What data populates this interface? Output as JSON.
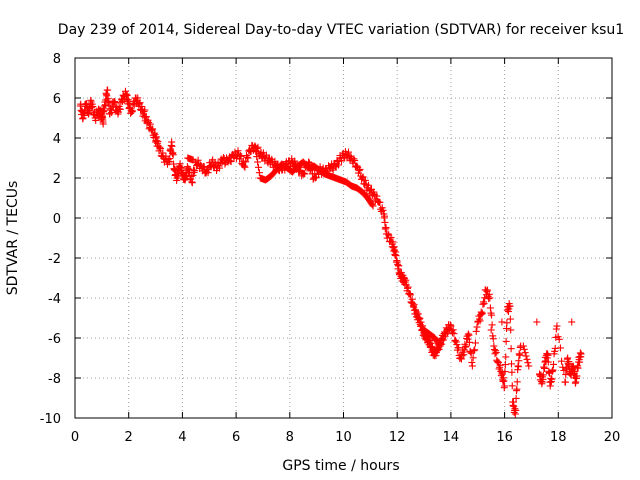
{
  "chart_data": {
    "type": "scatter",
    "title": "Day 239 of 2014, Sidereal Day-to-day VTEC variation (SDTVAR) for receiver ksu1",
    "xlabel": "GPS time / hours",
    "ylabel": "SDTVAR / TECUs",
    "xlim": [
      0,
      20
    ],
    "ylim": [
      -10,
      8
    ],
    "xticks": [
      0,
      2,
      4,
      6,
      8,
      10,
      12,
      14,
      16,
      18,
      20
    ],
    "yticks": [
      -10,
      -8,
      -6,
      -4,
      -2,
      0,
      2,
      4,
      6,
      8
    ],
    "grid": true,
    "marker": "+",
    "color": "#ff0000",
    "series": [
      {
        "name": "ksu1",
        "x": [
          0.2,
          0.3,
          0.4,
          0.5,
          0.6,
          0.75,
          0.9,
          1.0,
          1.1,
          1.2,
          1.3,
          1.45,
          1.6,
          1.75,
          1.9,
          2.0,
          2.1,
          2.25,
          2.4,
          2.55,
          2.7,
          2.85,
          3.0,
          3.1,
          3.3,
          3.5,
          3.6,
          3.7,
          3.8,
          3.9,
          4.0,
          4.1,
          4.2,
          4.35,
          4.5,
          4.7,
          4.9,
          5.1,
          5.3,
          5.5,
          5.7,
          5.9,
          6.1,
          6.3,
          6.5,
          6.7,
          6.9,
          7.1,
          7.3,
          7.5,
          7.7,
          7.9,
          8.1,
          8.3,
          8.5,
          8.7,
          8.9,
          9.1,
          9.3,
          9.5,
          9.7,
          9.9,
          10.1,
          10.3,
          10.5,
          10.7,
          10.9,
          11.1,
          11.3,
          11.5,
          11.6,
          11.8,
          11.9,
          12.0,
          12.1,
          12.2,
          12.3,
          12.45,
          12.6,
          12.7,
          12.8,
          12.9,
          13.0,
          13.1,
          13.2,
          13.3,
          13.4,
          13.5,
          13.6,
          13.7,
          13.85,
          14.0,
          14.2,
          14.35,
          14.5,
          14.65,
          14.8,
          15.0,
          15.15,
          15.3,
          15.45,
          15.6,
          15.75,
          15.9,
          16.0,
          16.1,
          16.2,
          16.3,
          16.4,
          16.5,
          16.6,
          17.3,
          17.4,
          17.5,
          17.6,
          17.7,
          17.8,
          17.95,
          18.25,
          18.35,
          18.45,
          18.55,
          18.65,
          18.75,
          18.85
        ],
        "y": [
          5.6,
          5.0,
          5.7,
          5.2,
          5.8,
          5.0,
          5.4,
          5.0,
          5.6,
          6.4,
          5.2,
          5.8,
          5.2,
          5.9,
          6.2,
          5.7,
          5.3,
          6.0,
          5.7,
          5.2,
          4.8,
          4.4,
          4.0,
          3.6,
          3.0,
          2.8,
          3.8,
          2.4,
          2.0,
          2.6,
          2.2,
          1.9,
          2.5,
          1.8,
          2.8,
          2.6,
          2.3,
          2.8,
          2.5,
          2.9,
          2.8,
          3.1,
          3.2,
          2.6,
          3.4,
          3.6,
          3.2,
          3.0,
          2.8,
          2.6,
          2.4,
          2.7,
          2.8,
          2.5,
          2.2,
          2.8,
          2.0,
          2.4,
          2.3,
          2.5,
          2.6,
          3.0,
          3.2,
          3.0,
          2.6,
          2.0,
          1.5,
          1.2,
          0.8,
          0.2,
          -0.8,
          -1.2,
          -1.6,
          -2.2,
          -2.8,
          -3.0,
          -3.2,
          -3.8,
          -4.4,
          -4.8,
          -5.0,
          -5.4,
          -5.8,
          -6.0,
          -6.2,
          -6.6,
          -6.8,
          -6.6,
          -6.3,
          -6.0,
          -5.6,
          -5.4,
          -6.2,
          -7.0,
          -6.6,
          -5.8,
          -7.4,
          -5.2,
          -4.8,
          -3.6,
          -4.0,
          -6.4,
          -7.2,
          -7.8,
          -8.4,
          -4.6,
          -4.4,
          -9.2,
          -9.8,
          -7.4,
          -6.4,
          -7.8,
          -8.2,
          -7.2,
          -6.8,
          -8.4,
          -7.6,
          -5.4,
          -8.2,
          -7.0,
          -7.8,
          -7.4,
          -8.2,
          -7.2,
          -6.8
        ],
        "extra_x": [
          1.0,
          1.05,
          2.6,
          3.0,
          4.2,
          4.4,
          6.7,
          6.9,
          7.1,
          7.3,
          7.5,
          7.7,
          7.9,
          8.1,
          8.3,
          8.5,
          8.7,
          8.9,
          9.1,
          9.3,
          9.5,
          9.7,
          9.9,
          10.1,
          10.3,
          10.5,
          10.7,
          10.9,
          11.1,
          13.0,
          13.2,
          13.4,
          13.6,
          15.5,
          15.9,
          16.7,
          16.9,
          17.2,
          18.5
        ],
        "extra_y": [
          5.3,
          4.7,
          5.4,
          3.8,
          3.0,
          2.9,
          3.6,
          2.0,
          1.9,
          2.1,
          2.4,
          2.7,
          2.5,
          2.3,
          2.6,
          2.8,
          2.5,
          2.6,
          2.4,
          2.2,
          2.1,
          2.0,
          1.9,
          1.8,
          1.6,
          1.5,
          1.3,
          1.0,
          0.6,
          -5.6,
          -5.8,
          -6.0,
          -6.4,
          -5.6,
          -5.2,
          -6.4,
          -7.4,
          -5.2,
          -5.2
        ]
      }
    ]
  }
}
